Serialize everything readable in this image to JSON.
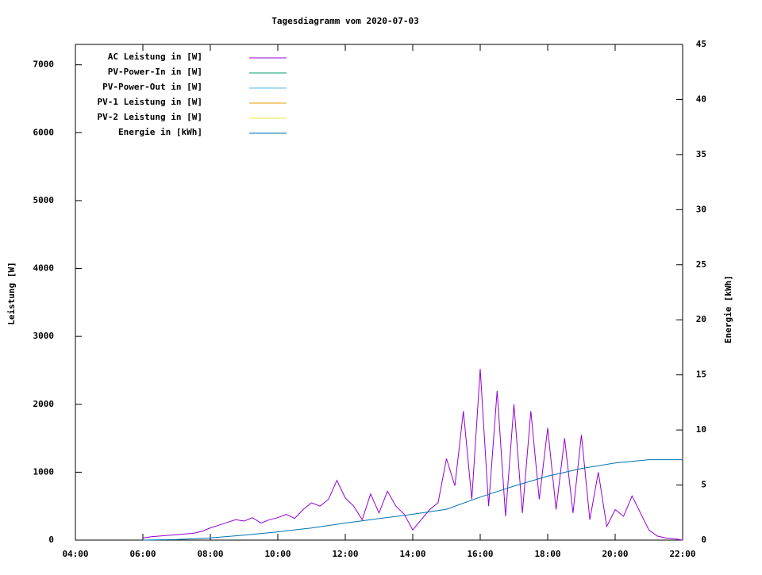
{
  "chart_data": {
    "type": "line",
    "title": "Tagesdiagramm vom 2020-07-03",
    "y_label": "Leistung [W]",
    "y2_label": "Energie [kWh]",
    "xlim": [
      4,
      22
    ],
    "xticks": [
      {
        "value": 4,
        "label": "04:00"
      },
      {
        "value": 6,
        "label": "06:00"
      },
      {
        "value": 8,
        "label": "08:00"
      },
      {
        "value": 10,
        "label": "10:00"
      },
      {
        "value": 12,
        "label": "12:00"
      },
      {
        "value": 14,
        "label": "14:00"
      },
      {
        "value": 16,
        "label": "16:00"
      },
      {
        "value": 18,
        "label": "18:00"
      },
      {
        "value": 20,
        "label": "20:00"
      },
      {
        "value": 22,
        "label": "22:00"
      }
    ],
    "ylim": [
      0,
      7300
    ],
    "yticks": [
      0,
      1000,
      2000,
      3000,
      4000,
      5000,
      6000,
      7000
    ],
    "y2lim": [
      0,
      45
    ],
    "y2ticks": [
      0,
      5,
      10,
      15,
      20,
      25,
      30,
      35,
      40,
      45
    ],
    "series": [
      {
        "name": "AC Leistung in [W]",
        "color": "#9400d3",
        "x": [
          6,
          6.25,
          6.5,
          6.75,
          7,
          7.25,
          7.5,
          7.75,
          8,
          8.25,
          8.5,
          8.75,
          9,
          9.25,
          9.5,
          9.75,
          10,
          10.25,
          10.5,
          10.75,
          11,
          11.25,
          11.5,
          11.75,
          12,
          12.25,
          12.5,
          12.75,
          13,
          13.25,
          13.5,
          13.75,
          14,
          14.25,
          14.5,
          14.75,
          15,
          15.25,
          15.5,
          15.75,
          16,
          16.25,
          16.5,
          16.75,
          17,
          17.25,
          17.5,
          17.75,
          18,
          18.25,
          18.5,
          18.75,
          19,
          19.25,
          19.5,
          19.75,
          20,
          20.25,
          20.5,
          20.75,
          21,
          21.25,
          21.5,
          21.75,
          22
        ],
        "values": [
          30,
          50,
          60,
          70,
          80,
          90,
          100,
          130,
          180,
          220,
          260,
          300,
          280,
          330,
          250,
          300,
          330,
          380,
          320,
          450,
          550,
          500,
          600,
          880,
          620,
          500,
          300,
          680,
          400,
          720,
          500,
          380,
          150,
          300,
          450,
          550,
          1200,
          800,
          1900,
          600,
          2520,
          500,
          2200,
          350,
          2000,
          400,
          1900,
          600,
          1650,
          450,
          1500,
          400,
          1550,
          300,
          1000,
          200,
          450,
          350,
          650,
          400,
          150,
          60,
          30,
          20,
          0
        ]
      },
      {
        "name": "PV-Power-In in [W]",
        "color": "#009e73",
        "x": [],
        "values": []
      },
      {
        "name": "PV-Power-Out in [W]",
        "color": "#56b4e9",
        "x": [],
        "values": []
      },
      {
        "name": "PV-1 Leistung in [W]",
        "color": "#e69f00",
        "x": [],
        "values": []
      },
      {
        "name": "PV-2 Leistung in [W]",
        "color": "#f0e442",
        "x": [],
        "values": []
      },
      {
        "name": "Energie in [kWh]",
        "color": "#0072b2",
        "axis": "y2",
        "x": [
          6,
          7,
          8,
          9,
          10,
          11,
          12,
          13,
          14,
          15,
          16,
          17,
          18,
          19,
          20,
          21,
          22
        ],
        "values": [
          0,
          0.05,
          0.2,
          0.45,
          0.75,
          1.1,
          1.55,
          1.95,
          2.35,
          2.8,
          3.9,
          4.9,
          5.8,
          6.5,
          7.0,
          7.3,
          7.3
        ]
      }
    ]
  }
}
